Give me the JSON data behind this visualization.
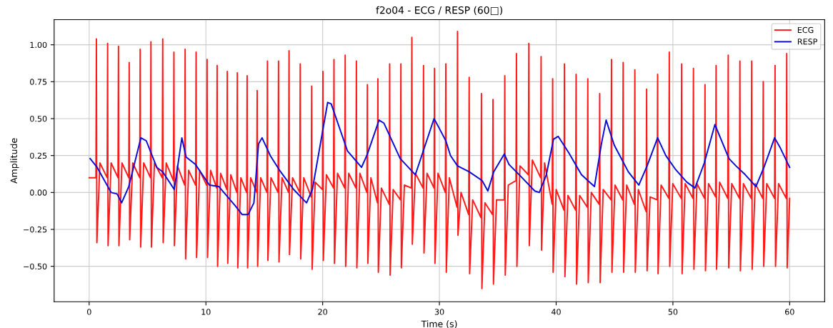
{
  "chart_data": {
    "type": "line",
    "title": "f2o04 - ECG / RESP (60□)",
    "xlabel": "Time (s)",
    "ylabel": "Amplitude",
    "xlim": [
      -3,
      63
    ],
    "xticks": [
      0,
      10,
      20,
      30,
      40,
      50,
      60
    ],
    "ylim": [
      -0.74,
      1.17
    ],
    "yticks": [
      {
        "value": -0.5,
        "label": "−0.50"
      },
      {
        "value": -0.25,
        "label": "−0.25"
      },
      {
        "value": 0,
        "label": "0.00"
      },
      {
        "value": 0.25,
        "label": "0.25"
      },
      {
        "value": 0.5,
        "label": "0.50"
      },
      {
        "value": 0.75,
        "label": "0.75"
      },
      {
        "value": 1.0,
        "label": "1.00"
      }
    ],
    "grid": true,
    "legend": "top right",
    "line_style": "solid",
    "marker": "none",
    "series": [
      {
        "name": "ECG",
        "color": "#ff1a1a",
        "x": [
          0.0,
          0.58,
          0.62,
          0.66,
          0.92,
          1.54,
          1.58,
          1.62,
          1.88,
          2.47,
          2.51,
          2.55,
          2.81,
          3.39,
          3.43,
          3.47,
          3.73,
          4.33,
          4.37,
          4.41,
          4.67,
          5.25,
          5.29,
          5.33,
          5.59,
          6.26,
          6.3,
          6.34,
          6.6,
          7.22,
          7.26,
          7.3,
          7.56,
          8.18,
          8.22,
          8.26,
          8.52,
          9.12,
          9.16,
          9.2,
          9.46,
          10.06,
          10.1,
          10.14,
          10.4,
          10.92,
          10.96,
          11.0,
          11.26,
          11.79,
          11.83,
          11.87,
          12.13,
          12.65,
          12.69,
          12.73,
          12.99,
          13.49,
          13.53,
          13.57,
          13.83,
          14.35,
          14.39,
          14.43,
          14.69,
          15.23,
          15.27,
          15.31,
          15.57,
          16.18,
          16.22,
          16.26,
          16.52,
          17.08,
          17.12,
          17.16,
          17.42,
          18.04,
          18.08,
          18.12,
          18.38,
          19.02,
          19.06,
          19.1,
          19.36,
          19.98,
          20.02,
          20.06,
          20.32,
          20.93,
          20.97,
          21.01,
          21.27,
          21.89,
          21.93,
          21.97,
          22.23,
          22.85,
          22.89,
          22.93,
          23.19,
          23.79,
          23.83,
          23.87,
          24.13,
          24.69,
          24.73,
          24.77,
          25.03,
          25.7,
          25.74,
          25.78,
          26.04,
          26.66,
          26.7,
          26.74,
          27.0,
          27.6,
          27.64,
          27.68,
          27.94,
          28.6,
          28.64,
          28.68,
          28.94,
          29.54,
          29.58,
          29.62,
          29.88,
          30.51,
          30.55,
          30.59,
          30.85,
          31.51,
          31.55,
          31.59,
          31.85,
          32.51,
          32.55,
          32.59,
          32.85,
          33.56,
          33.6,
          33.64,
          33.9,
          34.55,
          34.59,
          34.63,
          34.89,
          35.56,
          35.6,
          35.64,
          35.9,
          36.56,
          36.6,
          36.64,
          36.9,
          37.62,
          37.66,
          37.7,
          37.96,
          38.67,
          38.71,
          38.75,
          39.01,
          39.66,
          39.7,
          39.74,
          40.0,
          40.67,
          40.71,
          40.75,
          41.01,
          41.67,
          41.71,
          41.75,
          42.01,
          42.67,
          42.71,
          42.75,
          43.01,
          43.69,
          43.73,
          43.77,
          44.03,
          44.7,
          44.74,
          44.78,
          45.04,
          45.7,
          45.74,
          45.78,
          46.04,
          46.7,
          46.74,
          46.78,
          47.04,
          47.71,
          47.75,
          47.79,
          48.05,
          48.65,
          48.69,
          48.73,
          48.99,
          49.65,
          49.69,
          49.73,
          49.99,
          50.71,
          50.75,
          50.79,
          51.05,
          51.72,
          51.76,
          51.8,
          52.06,
          52.71,
          52.75,
          52.79,
          53.05,
          53.66,
          53.7,
          53.74,
          54.0,
          54.7,
          54.74,
          54.78,
          55.04,
          55.7,
          55.74,
          55.78,
          56.04,
          56.71,
          56.75,
          56.79,
          57.05,
          57.7,
          57.74,
          57.78,
          58.04,
          58.71,
          58.75,
          58.79,
          59.05,
          59.71,
          59.75,
          59.79,
          60.0
        ],
        "values": [
          0.1,
          0.1,
          1.04,
          -0.34,
          0.2,
          0.1,
          1.01,
          -0.36,
          0.2,
          0.1,
          0.99,
          -0.36,
          0.2,
          0.1,
          0.88,
          -0.32,
          0.2,
          0.1,
          0.97,
          -0.37,
          0.2,
          0.1,
          1.02,
          -0.37,
          0.2,
          0.1,
          1.04,
          -0.34,
          0.2,
          0.08,
          0.95,
          -0.36,
          0.18,
          0.05,
          0.97,
          -0.45,
          0.15,
          0.05,
          0.95,
          -0.44,
          0.15,
          0.05,
          0.9,
          -0.44,
          0.15,
          0.03,
          0.86,
          -0.5,
          0.13,
          0.02,
          0.82,
          -0.48,
          0.12,
          0.0,
          0.81,
          -0.51,
          0.1,
          0.0,
          0.79,
          -0.51,
          0.1,
          0.0,
          0.69,
          -0.5,
          0.1,
          0.0,
          0.89,
          -0.46,
          0.1,
          0.0,
          0.89,
          -0.47,
          0.1,
          0.0,
          0.96,
          -0.42,
          0.1,
          0.0,
          0.87,
          -0.45,
          0.1,
          -0.03,
          0.72,
          -0.52,
          0.07,
          0.02,
          0.82,
          -0.46,
          0.12,
          0.03,
          0.9,
          -0.48,
          0.13,
          0.03,
          0.93,
          -0.5,
          0.13,
          0.03,
          0.89,
          -0.51,
          0.13,
          0.0,
          0.73,
          -0.48,
          0.1,
          -0.07,
          0.77,
          -0.54,
          0.03,
          -0.08,
          0.87,
          -0.56,
          0.02,
          -0.05,
          0.87,
          -0.51,
          0.05,
          0.03,
          1.05,
          -0.35,
          0.13,
          0.03,
          0.86,
          -0.41,
          0.13,
          0.03,
          0.84,
          -0.48,
          0.13,
          0.0,
          0.87,
          -0.54,
          0.1,
          -0.1,
          1.09,
          -0.29,
          0.0,
          -0.15,
          0.78,
          -0.55,
          -0.05,
          -0.17,
          0.67,
          -0.65,
          -0.07,
          -0.15,
          0.63,
          -0.62,
          -0.05,
          -0.05,
          0.79,
          -0.56,
          0.05,
          0.08,
          0.94,
          -0.5,
          0.18,
          0.12,
          1.01,
          -0.36,
          0.22,
          0.1,
          0.92,
          -0.39,
          0.2,
          -0.08,
          0.77,
          -0.54,
          0.02,
          -0.12,
          0.87,
          -0.57,
          -0.02,
          -0.12,
          0.8,
          -0.62,
          -0.02,
          -0.1,
          0.77,
          -0.61,
          0.0,
          -0.08,
          0.67,
          -0.61,
          0.02,
          -0.05,
          0.9,
          -0.54,
          0.05,
          -0.05,
          0.88,
          -0.54,
          0.05,
          -0.08,
          0.83,
          -0.54,
          0.02,
          -0.13,
          0.7,
          -0.53,
          -0.03,
          -0.05,
          0.8,
          -0.55,
          0.05,
          -0.04,
          0.95,
          -0.5,
          0.06,
          -0.04,
          0.87,
          -0.55,
          0.06,
          -0.04,
          0.84,
          -0.52,
          0.06,
          -0.04,
          0.73,
          -0.53,
          0.06,
          -0.03,
          0.86,
          -0.52,
          0.07,
          -0.04,
          0.93,
          -0.51,
          0.06,
          -0.04,
          0.89,
          -0.53,
          0.06,
          -0.04,
          0.89,
          -0.52,
          0.06,
          -0.04,
          0.75,
          -0.5,
          0.06,
          -0.04,
          0.86,
          -0.5,
          0.06,
          -0.04,
          0.94,
          -0.51,
          -0.04
        ]
      },
      {
        "name": "RESP",
        "color": "#0a0ad8",
        "x": [
          0.08,
          0.68,
          1.88,
          2.39,
          2.78,
          3.39,
          4.43,
          4.89,
          5.79,
          6.3,
          7.29,
          7.94,
          8.3,
          9.1,
          10.3,
          11.11,
          12.51,
          13.11,
          13.61,
          14.11,
          14.51,
          14.81,
          15.51,
          16.31,
          17.52,
          18.62,
          19.12,
          20.43,
          20.73,
          22.13,
          23.33,
          23.83,
          24.83,
          25.24,
          26.64,
          27.94,
          29.54,
          29.95,
          30.55,
          30.95,
          31.55,
          32.55,
          33.66,
          34.15,
          34.65,
          35.56,
          35.96,
          36.96,
          38.17,
          38.56,
          39.16,
          39.77,
          40.17,
          41.07,
          42.17,
          43.28,
          43.88,
          44.28,
          44.98,
          45.58,
          46.18,
          47.08,
          47.79,
          48.69,
          49.39,
          50.19,
          51.19,
          51.89,
          52.69,
          53.6,
          54.8,
          55.4,
          56.2,
          57.11,
          57.8,
          58.71,
          59.21,
          60.0
        ],
        "values": [
          0.23,
          0.17,
          0.0,
          -0.01,
          -0.07,
          0.04,
          0.37,
          0.35,
          0.17,
          0.14,
          0.02,
          0.37,
          0.24,
          0.19,
          0.05,
          0.04,
          -0.09,
          -0.15,
          -0.15,
          -0.07,
          0.33,
          0.37,
          0.25,
          0.15,
          0.02,
          -0.07,
          0.02,
          0.61,
          0.6,
          0.28,
          0.17,
          0.26,
          0.49,
          0.47,
          0.23,
          0.12,
          0.5,
          0.44,
          0.35,
          0.25,
          0.18,
          0.14,
          0.08,
          0.01,
          0.14,
          0.26,
          0.19,
          0.11,
          0.01,
          0.0,
          0.12,
          0.36,
          0.38,
          0.27,
          0.12,
          0.04,
          0.33,
          0.49,
          0.32,
          0.23,
          0.14,
          0.05,
          0.18,
          0.37,
          0.25,
          0.16,
          0.07,
          0.03,
          0.2,
          0.46,
          0.23,
          0.18,
          0.12,
          0.04,
          0.17,
          0.37,
          0.3,
          0.17
        ]
      }
    ]
  }
}
